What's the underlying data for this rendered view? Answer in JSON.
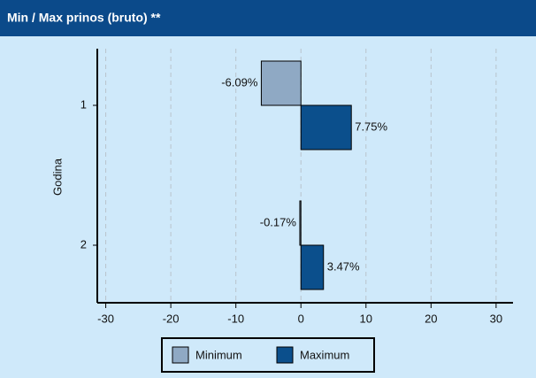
{
  "chart_data": {
    "type": "bar",
    "orientation": "horizontal",
    "title": "Min / Max prinos (bruto) **",
    "y_label": "Godina",
    "categories": [
      "1",
      "2"
    ],
    "series": [
      {
        "name": "Minimum",
        "color": "#8fa9c4",
        "values": [
          -6.09,
          -0.17
        ],
        "value_labels": [
          "-6.09%",
          "-0.17%"
        ]
      },
      {
        "name": "Maximum",
        "color": "#0b4f8c",
        "values": [
          7.75,
          3.47
        ],
        "value_labels": [
          "7.75%",
          "3.47%"
        ]
      }
    ],
    "xlim": [
      -31.3,
      32.6
    ],
    "xticks": [
      -30,
      -20,
      -10,
      0,
      10,
      20,
      30
    ],
    "grid": true,
    "legend": "bottom"
  }
}
